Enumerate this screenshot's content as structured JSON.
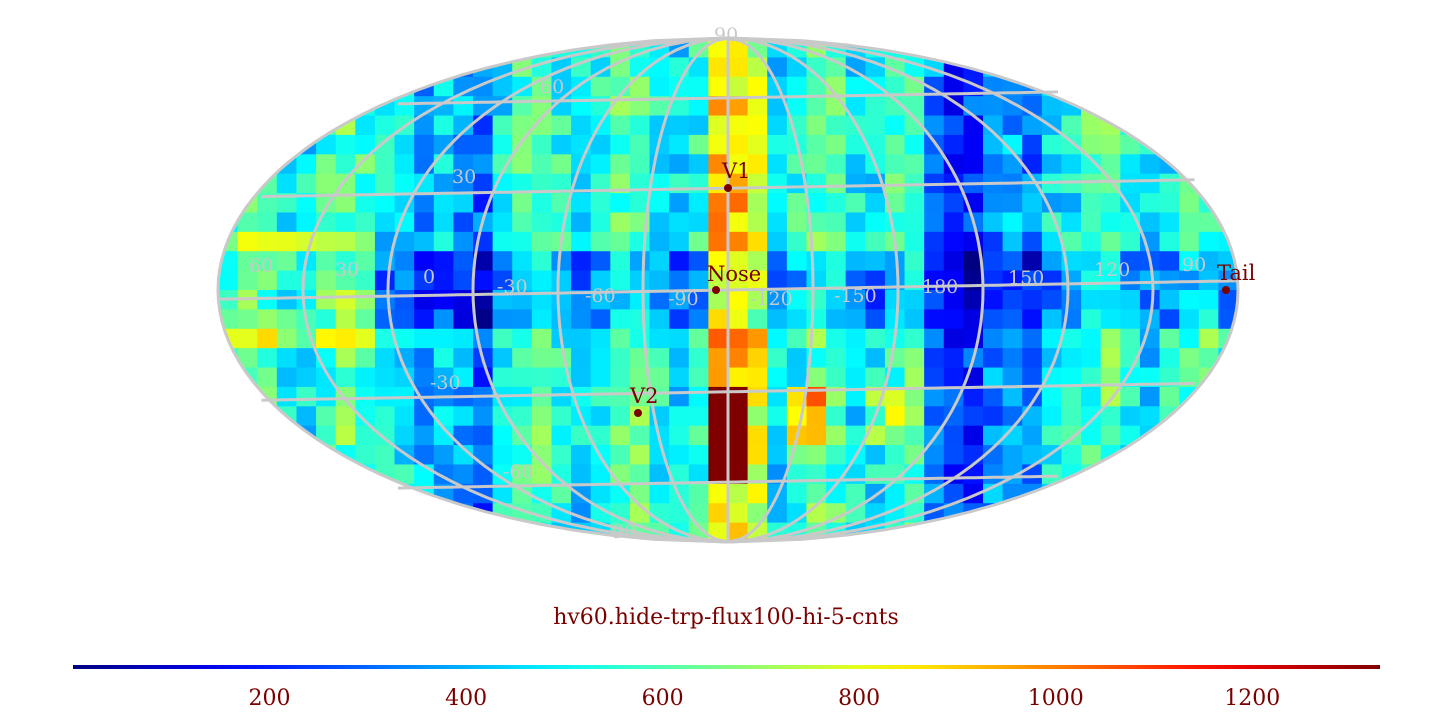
{
  "map": {
    "projection": "Mollweide (Hammer-Aitoff style all-sky)",
    "colors": {
      "graticule": "#c9c9c9",
      "marker": "#7a0000",
      "label": "#7a0000"
    },
    "parallels": [
      {
        "lat": 90,
        "label": "90"
      },
      {
        "lat": 60,
        "label": "60"
      },
      {
        "lat": 30,
        "label": "30"
      },
      {
        "lat": -30,
        "label": "-30"
      },
      {
        "lat": -60,
        "label": "-60"
      },
      {
        "lat": -90,
        "label": "90"
      }
    ],
    "meridian_labels": [
      "60",
      "30",
      "0",
      "-30",
      "-60",
      "-90",
      "-120",
      "-150",
      "180",
      "150",
      "120",
      "90"
    ],
    "markers": [
      {
        "name": "V1",
        "lon": -105,
        "lat": 34
      },
      {
        "name": "Nose",
        "lon": -105,
        "lat": 0
      },
      {
        "name": "V2",
        "lon": -75,
        "lat": -34
      },
      {
        "name": "Tail",
        "lon": 75,
        "lat": 0
      }
    ]
  },
  "title": "hv60.hide-trp-flux100-hi-5-cnts",
  "colorbar": {
    "ticks": [
      {
        "value": 200,
        "label": "200"
      },
      {
        "value": 400,
        "label": "400"
      },
      {
        "value": 600,
        "label": "600"
      },
      {
        "value": 800,
        "label": "800"
      },
      {
        "value": 1000,
        "label": "1000"
      },
      {
        "value": 1200,
        "label": "1200"
      }
    ],
    "range": [
      0,
      1330
    ],
    "colormap": "jet"
  }
}
